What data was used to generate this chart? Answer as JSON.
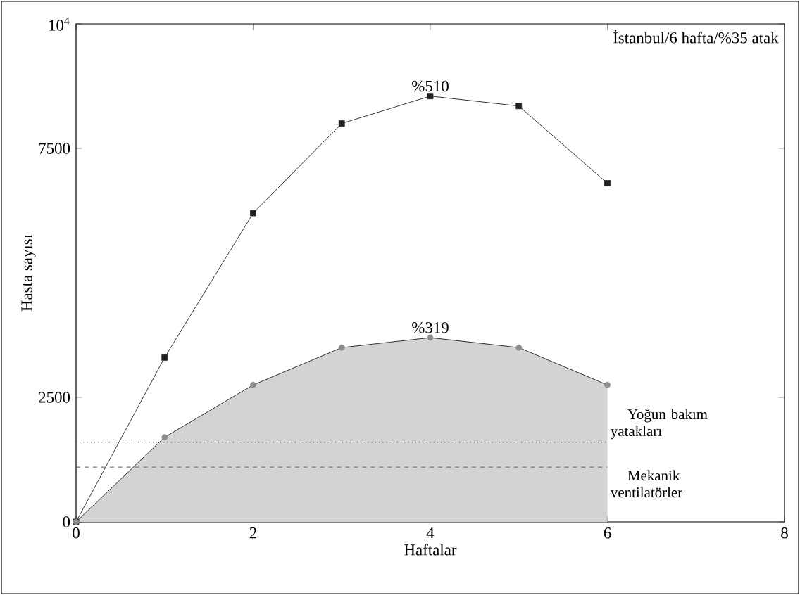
{
  "chart_data": {
    "type": "line",
    "xlabel": "Haftalar",
    "ylabel": "Hasta sayısı",
    "x": [
      0,
      1,
      2,
      3,
      4,
      5,
      6
    ],
    "series": [
      {
        "color": "#222222",
        "marker": "square",
        "values": [
          0,
          3300,
          6200,
          8000,
          8550,
          8350,
          6800
        ]
      },
      {
        "type": "area",
        "color": "#8c8c8c",
        "values": [
          0,
          1700,
          2750,
          3500,
          3700,
          3500,
          2750
        ]
      }
    ],
    "xlim": [
      0,
      8
    ],
    "ylim": [
      0,
      10000
    ],
    "xticks": [
      0,
      2,
      4,
      6,
      8
    ],
    "yticks": [
      0,
      2500,
      7500,
      {
        "value": 10000,
        "label": "10$^{4}$"
      }
    ],
    "ref_lines": [
      {
        "axis": "y",
        "value": 1600,
        "label": "Yoğun bakım yatakları",
        "color": "#555555",
        "line_style": "dotted"
      },
      {
        "axis": "y",
        "value": 1100,
        "label": "Mekanik ventilatörler",
        "color": "#777777",
        "line_style": "dashed"
      }
    ],
    "annotations": [
      "İstanbul/6 hafta/%35 atak",
      {
        "text": "%510",
        "x": 4,
        "y": 8550
      },
      {
        "text": "%319",
        "x": 4,
        "y": 3700
      }
    ],
    "marker": "circle",
    "line_style": "solid",
    "grid": false
  }
}
